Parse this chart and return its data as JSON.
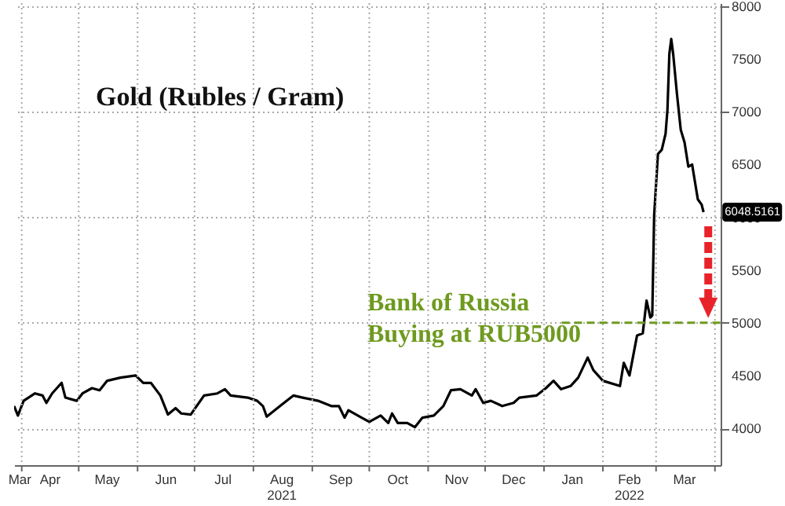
{
  "chart_data": {
    "type": "line",
    "title": "Gold (Rubles / Gram)",
    "x": [
      "2021-03-28",
      "2021-03-30",
      "2021-04-02",
      "2021-04-08",
      "2021-04-12",
      "2021-04-14",
      "2021-04-17",
      "2021-04-22",
      "2021-04-24",
      "2021-04-30",
      "2021-05-03",
      "2021-05-08",
      "2021-05-12",
      "2021-05-16",
      "2021-05-23",
      "2021-05-31",
      "2021-06-04",
      "2021-06-08",
      "2021-06-13",
      "2021-06-17",
      "2021-06-21",
      "2021-06-24",
      "2021-06-29",
      "2021-07-06",
      "2021-07-13",
      "2021-07-17",
      "2021-07-20",
      "2021-07-29",
      "2021-08-03",
      "2021-08-06",
      "2021-08-08",
      "2021-08-15",
      "2021-08-22",
      "2021-08-27",
      "2021-09-04",
      "2021-09-11",
      "2021-09-15",
      "2021-09-18",
      "2021-09-20",
      "2021-09-27",
      "2021-10-01",
      "2021-10-07",
      "2021-10-11",
      "2021-10-13",
      "2021-10-16",
      "2021-10-21",
      "2021-10-25",
      "2021-10-29",
      "2021-11-04",
      "2021-11-09",
      "2021-11-13",
      "2021-11-18",
      "2021-11-24",
      "2021-11-26",
      "2021-11-30",
      "2021-12-04",
      "2021-12-10",
      "2021-12-16",
      "2021-12-19",
      "2021-12-28",
      "2022-01-02",
      "2022-01-06",
      "2022-01-10",
      "2022-01-15",
      "2022-01-19",
      "2022-01-24",
      "2022-01-27",
      "2022-02-01",
      "2022-02-10",
      "2022-02-12",
      "2022-02-15",
      "2022-02-19",
      "2022-02-22",
      "2022-02-24",
      "2022-02-26",
      "2022-02-27",
      "2022-02-28",
      "2022-03-02",
      "2022-03-04",
      "2022-03-06",
      "2022-03-07",
      "2022-03-08",
      "2022-03-09",
      "2022-03-10",
      "2022-03-12",
      "2022-03-14",
      "2022-03-16",
      "2022-03-18",
      "2022-03-20",
      "2022-03-23",
      "2022-03-25",
      "2022-03-26"
    ],
    "series": [
      {
        "color": "#000000",
        "values": [
          4210,
          4120,
          4260,
          4330,
          4310,
          4240,
          4330,
          4430,
          4290,
          4260,
          4330,
          4380,
          4360,
          4450,
          4480,
          4500,
          4430,
          4430,
          4310,
          4130,
          4190,
          4140,
          4130,
          4310,
          4330,
          4370,
          4310,
          4290,
          4260,
          4210,
          4110,
          4210,
          4310,
          4290,
          4260,
          4210,
          4210,
          4100,
          4170,
          4100,
          4060,
          4120,
          4050,
          4140,
          4050,
          4050,
          4010,
          4100,
          4120,
          4210,
          4360,
          4370,
          4310,
          4370,
          4240,
          4260,
          4210,
          4240,
          4290,
          4310,
          4380,
          4450,
          4370,
          4400,
          4480,
          4670,
          4550,
          4450,
          4400,
          4620,
          4500,
          4880,
          4900,
          5210,
          5050,
          5070,
          6020,
          6600,
          6640,
          6790,
          7020,
          7550,
          7690,
          7550,
          7170,
          6830,
          6710,
          6480,
          6500,
          6170,
          6120,
          6048.5161
        ]
      }
    ],
    "xlim": [
      "2021-03-28",
      "2022-04-04"
    ],
    "xticks": [
      {
        "value": "2021-03-31",
        "label": "Mar"
      },
      {
        "value": "2021-04-01",
        "label": null
      },
      {
        "value": "2021-04-16",
        "label": "Apr"
      },
      {
        "value": "2021-05-01",
        "label": null
      },
      {
        "value": "2021-05-16",
        "label": "May"
      },
      {
        "value": "2021-06-01",
        "label": null
      },
      {
        "value": "2021-06-16",
        "label": "Jun"
      },
      {
        "value": "2021-07-01",
        "label": null
      },
      {
        "value": "2021-07-16",
        "label": "Jul"
      },
      {
        "value": "2021-08-01",
        "label": null
      },
      {
        "value": "2021-08-16",
        "label": "Aug\n2021"
      },
      {
        "value": "2021-09-01",
        "label": null
      },
      {
        "value": "2021-09-16",
        "label": "Sep"
      },
      {
        "value": "2021-10-01",
        "label": null
      },
      {
        "value": "2021-10-16",
        "label": "Oct"
      },
      {
        "value": "2021-11-01",
        "label": null
      },
      {
        "value": "2021-11-16",
        "label": "Nov"
      },
      {
        "value": "2021-12-01",
        "label": null
      },
      {
        "value": "2021-12-16",
        "label": "Dec"
      },
      {
        "value": "2022-01-01",
        "label": null
      },
      {
        "value": "2022-01-16",
        "label": "Jan"
      },
      {
        "value": "2022-02-01",
        "label": null
      },
      {
        "value": "2022-02-15",
        "label": "Feb\n2022"
      },
      {
        "value": "2022-03-01",
        "label": null
      },
      {
        "value": "2022-03-16",
        "label": "Mar"
      },
      {
        "value": "2022-04-01",
        "label": null
      }
    ],
    "ylim": [
      3650,
      8030
    ],
    "yticks": [
      4000,
      4500,
      5000,
      5500,
      6000,
      6500,
      7000,
      7500,
      8000
    ],
    "grid": true,
    "ref_lines": [
      {
        "axis": "y",
        "value": 5000,
        "label": "Bank of Russia\nBuying at RUB5000",
        "color": "#6e9a1f",
        "line_style": "dashed"
      }
    ],
    "annotations": [
      {
        "text": "6048.5161",
        "x": "2022-03-26",
        "y": 6048.5161
      }
    ]
  }
}
